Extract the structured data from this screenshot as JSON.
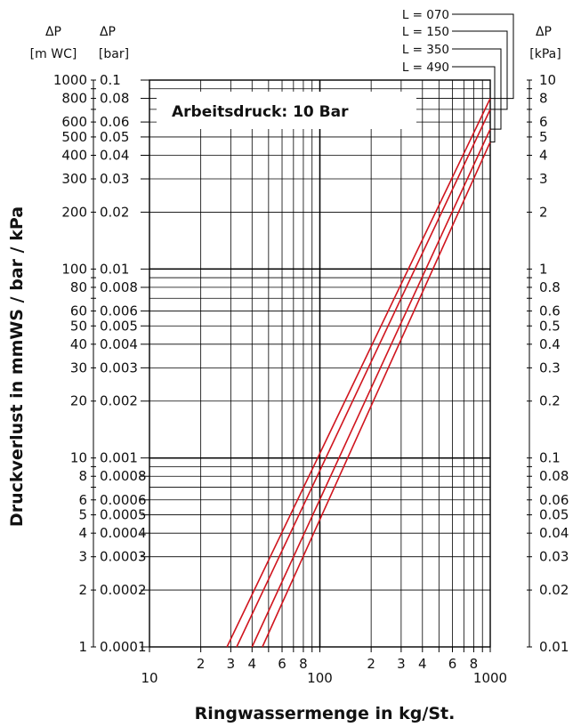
{
  "chart_data": {
    "type": "line",
    "x_scale": "log",
    "y_scale": "log",
    "xlim": [
      10,
      1000
    ],
    "ylim": [
      1,
      1000
    ],
    "grid": true,
    "annotation": "Arbeitsdruck: 10 Bar",
    "xlabel": "Ringwassermenge in kg/St.",
    "ylabel": "Druckverlust in mmWS / bar / kPa",
    "x_ticks_major": [
      "10",
      "100",
      "1000"
    ],
    "x_ticks_minor": [
      "2",
      "3",
      "4",
      "6",
      "8",
      "2",
      "3",
      "4",
      "6",
      "8"
    ],
    "left_axis_mwc": {
      "header": "ΔP",
      "unit": "[m WC]",
      "ticks": [
        "1000",
        "800",
        "600",
        "500",
        "400",
        "300",
        "200",
        "100",
        "80",
        "60",
        "50",
        "40",
        "30",
        "20",
        "10",
        "8",
        "6",
        "5",
        "4",
        "3",
        "2",
        "1"
      ]
    },
    "left_axis_bar": {
      "header": "ΔP",
      "unit": "[bar]",
      "ticks": [
        "0.1",
        "0.08",
        "0.06",
        "0.05",
        "0.04",
        "0.03",
        "0.02",
        "0.01",
        "0.008",
        "0.006",
        "0.005",
        "0.004",
        "0.003",
        "0.002",
        "0.001",
        "0.0008",
        "0.0006",
        "0.0005",
        "0.0004",
        "0.0003",
        "0.0002",
        "0.0001"
      ]
    },
    "right_axis_kpa": {
      "header": "ΔP",
      "unit": "[kPa]",
      "ticks": [
        "10",
        "8",
        "6",
        "5",
        "4",
        "3",
        "2",
        "1",
        "0.8",
        "0.6",
        "0.5",
        "0.4",
        "0.3",
        "0.2",
        "0.1",
        "0.08",
        "0.06",
        "0.05",
        "0.04",
        "0.03",
        "0.02",
        "0.01"
      ]
    },
    "series": [
      {
        "name": "L = 070",
        "x": [
          28.5,
          1000
        ],
        "y": [
          1,
          800
        ]
      },
      {
        "name": "L = 150",
        "x": [
          32.5,
          1000
        ],
        "y": [
          1,
          700
        ]
      },
      {
        "name": "L = 350",
        "x": [
          40,
          1000
        ],
        "y": [
          1,
          550
        ]
      },
      {
        "name": "L = 490",
        "x": [
          46,
          1000
        ],
        "y": [
          1,
          470
        ]
      }
    ],
    "line_color": "#d0151e"
  }
}
